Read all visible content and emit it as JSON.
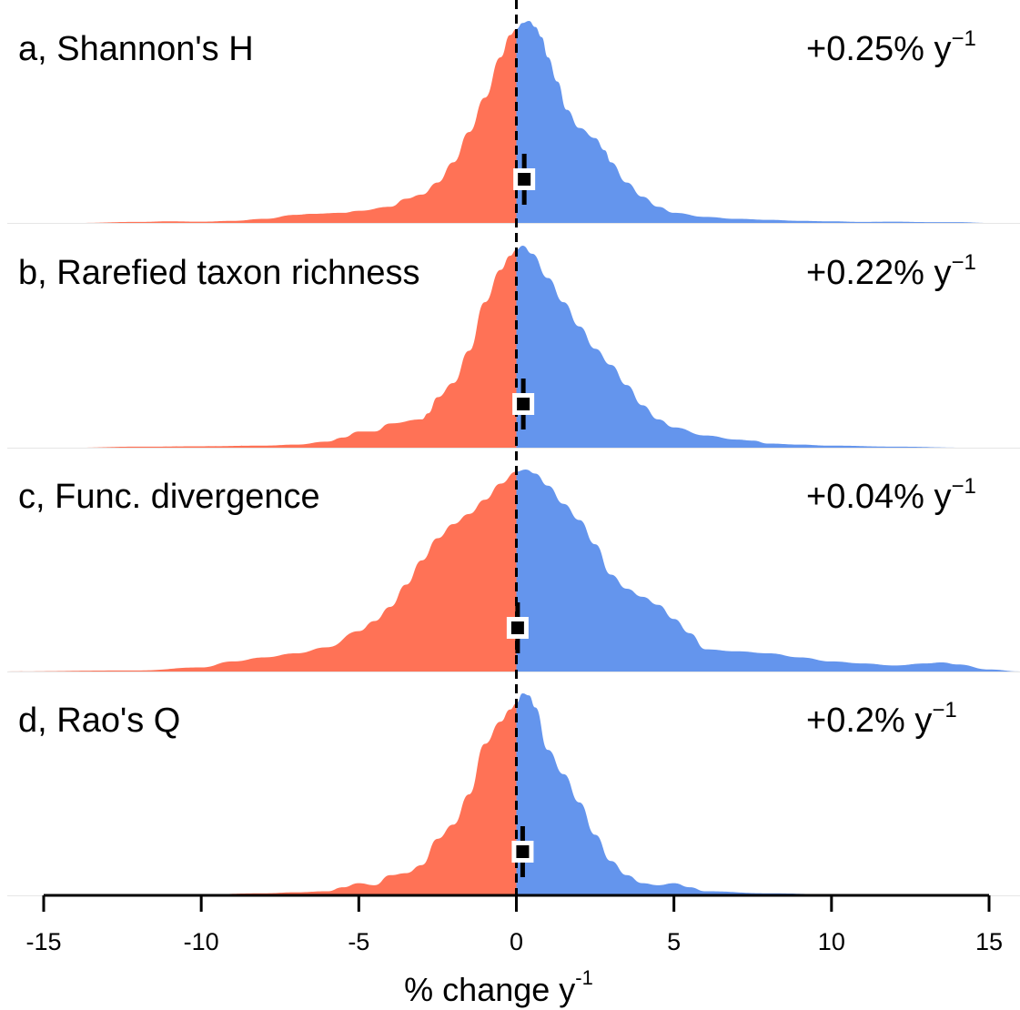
{
  "chart_data": {
    "type": "area",
    "description_free": true,
    "x_label": "% change y",
    "x_label_superscript": "-1",
    "x_range": [
      -15,
      15
    ],
    "x_ticks": [
      -15,
      -10,
      -5,
      0,
      5,
      10,
      15
    ],
    "x_tick_labels": [
      "-15",
      "-10",
      "-5",
      "0",
      "5",
      "10",
      "15"
    ],
    "reference_line_x": 0,
    "colors": {
      "negative": "#FF7256",
      "positive": "#6495ED",
      "baseline": "#e6e6e6"
    },
    "panels": [
      {
        "title": "a, Shannon's H",
        "rate_text": "+0.25% y",
        "rate_superscript": "−1",
        "estimate": 0.25,
        "interval": [
          0.2,
          0.3
        ],
        "density": [
          [
            -13.9,
            0.0
          ],
          [
            -12,
            0.005
          ],
          [
            -11,
            0.008
          ],
          [
            -10,
            0.006
          ],
          [
            -9,
            0.01
          ],
          [
            -8,
            0.02
          ],
          [
            -7,
            0.04
          ],
          [
            -6.5,
            0.045
          ],
          [
            -5.5,
            0.05
          ],
          [
            -5,
            0.06
          ],
          [
            -4,
            0.08
          ],
          [
            -3.5,
            0.12
          ],
          [
            -3,
            0.14
          ],
          [
            -2.5,
            0.2
          ],
          [
            -2,
            0.3
          ],
          [
            -1.5,
            0.45
          ],
          [
            -1,
            0.62
          ],
          [
            -0.5,
            0.82
          ],
          [
            -0.2,
            0.93
          ],
          [
            0,
            0.96
          ],
          [
            0.2,
            0.99
          ],
          [
            0.4,
            1.0
          ],
          [
            0.6,
            0.97
          ],
          [
            0.8,
            0.92
          ],
          [
            1,
            0.82
          ],
          [
            1.3,
            0.7
          ],
          [
            1.6,
            0.56
          ],
          [
            2,
            0.47
          ],
          [
            2.5,
            0.42
          ],
          [
            2.8,
            0.36
          ],
          [
            3,
            0.3
          ],
          [
            3.5,
            0.2
          ],
          [
            4,
            0.13
          ],
          [
            4.5,
            0.08
          ],
          [
            5,
            0.05
          ],
          [
            6,
            0.03
          ],
          [
            7,
            0.02
          ],
          [
            8,
            0.015
          ],
          [
            9,
            0.01
          ],
          [
            10,
            0.008
          ],
          [
            11,
            0.005
          ],
          [
            12,
            0.006
          ],
          [
            13,
            0.004
          ],
          [
            14,
            0.004
          ],
          [
            15,
            0.0
          ]
        ]
      },
      {
        "title": "b, Rarefied taxon richness",
        "rate_text": "+0.22% y",
        "rate_superscript": "−1",
        "estimate": 0.22,
        "interval": [
          0.1,
          0.35
        ],
        "density": [
          [
            -14,
            0.0
          ],
          [
            -12,
            0.005
          ],
          [
            -10,
            0.007
          ],
          [
            -8,
            0.01
          ],
          [
            -7,
            0.015
          ],
          [
            -6,
            0.03
          ],
          [
            -5.5,
            0.05
          ],
          [
            -5,
            0.08
          ],
          [
            -4.5,
            0.08
          ],
          [
            -4,
            0.12
          ],
          [
            -3,
            0.14
          ],
          [
            -2.8,
            0.17
          ],
          [
            -2.5,
            0.25
          ],
          [
            -2,
            0.32
          ],
          [
            -1.5,
            0.48
          ],
          [
            -1,
            0.72
          ],
          [
            -0.5,
            0.88
          ],
          [
            -0.2,
            0.95
          ],
          [
            0,
            0.98
          ],
          [
            0.2,
            1.0
          ],
          [
            0.5,
            0.96
          ],
          [
            1,
            0.84
          ],
          [
            1.5,
            0.72
          ],
          [
            2,
            0.6
          ],
          [
            2.5,
            0.49
          ],
          [
            3,
            0.41
          ],
          [
            3.5,
            0.31
          ],
          [
            4,
            0.21
          ],
          [
            4.5,
            0.14
          ],
          [
            5,
            0.1
          ],
          [
            6,
            0.06
          ],
          [
            7,
            0.04
          ],
          [
            7.5,
            0.035
          ],
          [
            8,
            0.02
          ],
          [
            9,
            0.015
          ],
          [
            10,
            0.01
          ],
          [
            12,
            0.005
          ],
          [
            14.3,
            0.0
          ]
        ]
      },
      {
        "title": "c, Func. divergence",
        "rate_text": "+0.04% y",
        "rate_superscript": "−1",
        "estimate": 0.04,
        "interval": [
          -0.1,
          0.15
        ],
        "density": [
          [
            -16.5,
            0.0
          ],
          [
            -12,
            0.005
          ],
          [
            -10,
            0.02
          ],
          [
            -9,
            0.05
          ],
          [
            -8,
            0.07
          ],
          [
            -7,
            0.09
          ],
          [
            -6,
            0.12
          ],
          [
            -5,
            0.2
          ],
          [
            -4.5,
            0.25
          ],
          [
            -4,
            0.32
          ],
          [
            -3.5,
            0.43
          ],
          [
            -3,
            0.55
          ],
          [
            -2.5,
            0.66
          ],
          [
            -2,
            0.73
          ],
          [
            -1.5,
            0.78
          ],
          [
            -1,
            0.85
          ],
          [
            -0.5,
            0.93
          ],
          [
            0,
            0.99
          ],
          [
            0.3,
            1.0
          ],
          [
            0.6,
            0.98
          ],
          [
            1,
            0.92
          ],
          [
            1.5,
            0.83
          ],
          [
            2,
            0.75
          ],
          [
            2.5,
            0.63
          ],
          [
            3,
            0.48
          ],
          [
            3.5,
            0.41
          ],
          [
            4,
            0.37
          ],
          [
            4.5,
            0.33
          ],
          [
            5,
            0.26
          ],
          [
            5.5,
            0.19
          ],
          [
            6,
            0.11
          ],
          [
            7,
            0.1
          ],
          [
            8,
            0.09
          ],
          [
            9,
            0.07
          ],
          [
            10,
            0.05
          ],
          [
            11,
            0.04
          ],
          [
            12,
            0.03
          ],
          [
            13,
            0.04
          ],
          [
            13.5,
            0.045
          ],
          [
            14,
            0.035
          ],
          [
            15,
            0.01
          ],
          [
            16,
            0.0
          ]
        ]
      },
      {
        "title": "d, Rao's Q",
        "rate_text": "+0.2% y",
        "rate_superscript": "−1",
        "estimate": 0.2,
        "interval": [
          0.1,
          0.3
        ],
        "density": [
          [
            -12.5,
            0.0
          ],
          [
            -10,
            0.005
          ],
          [
            -8,
            0.01
          ],
          [
            -7,
            0.015
          ],
          [
            -6,
            0.02
          ],
          [
            -5.5,
            0.04
          ],
          [
            -5,
            0.06
          ],
          [
            -4.5,
            0.05
          ],
          [
            -4,
            0.1
          ],
          [
            -3.5,
            0.11
          ],
          [
            -3,
            0.15
          ],
          [
            -2.5,
            0.28
          ],
          [
            -2,
            0.35
          ],
          [
            -1.5,
            0.5
          ],
          [
            -1,
            0.75
          ],
          [
            -0.5,
            0.86
          ],
          [
            -0.2,
            0.92
          ],
          [
            0,
            0.95
          ],
          [
            0.2,
            1.0
          ],
          [
            0.4,
            0.99
          ],
          [
            0.6,
            0.93
          ],
          [
            1,
            0.72
          ],
          [
            1.5,
            0.6
          ],
          [
            2,
            0.46
          ],
          [
            2.5,
            0.3
          ],
          [
            3,
            0.17
          ],
          [
            3.5,
            0.1
          ],
          [
            4,
            0.06
          ],
          [
            4.5,
            0.05
          ],
          [
            5,
            0.06
          ],
          [
            5.5,
            0.04
          ],
          [
            6,
            0.02
          ],
          [
            8,
            0.01
          ],
          [
            10,
            0.005
          ],
          [
            12,
            0.0
          ]
        ]
      }
    ]
  }
}
